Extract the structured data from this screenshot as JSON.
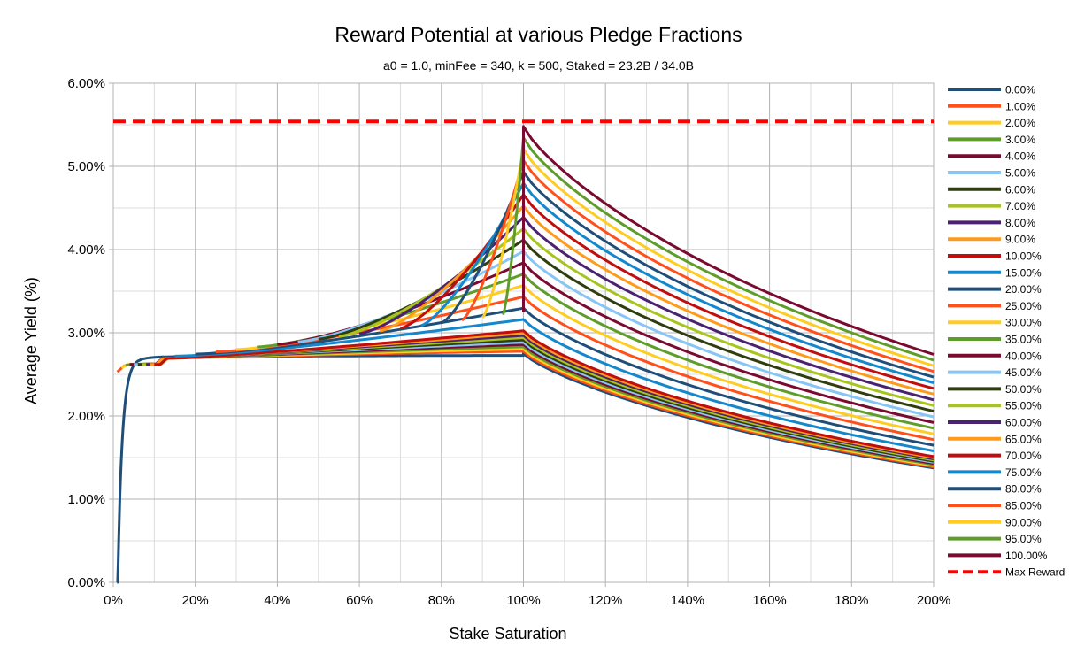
{
  "chart_data": {
    "type": "line",
    "title": "Reward Potential at various Pledge Fractions",
    "subtitle": "a0 = 1.0, minFee = 340, k = 500, Staked = 23.2B / 34.0B",
    "xlabel": "Stake Saturation",
    "ylabel": "Average Yield (%)",
    "xlim": [
      0,
      200
    ],
    "ylim": [
      0,
      6
    ],
    "xticks": [
      0,
      20,
      40,
      60,
      80,
      100,
      120,
      140,
      160,
      180,
      200
    ],
    "xtick_labels": [
      "0%",
      "20%",
      "40%",
      "60%",
      "80%",
      "100%",
      "120%",
      "140%",
      "160%",
      "180%",
      "200%"
    ],
    "yticks": [
      0,
      1,
      2,
      3,
      4,
      5,
      6
    ],
    "ytick_labels": [
      "0.00%",
      "1.00%",
      "2.00%",
      "3.00%",
      "4.00%",
      "5.00%",
      "6.00%"
    ],
    "grid": true,
    "legend_position": "right",
    "curve_model": {
      "description": "yield at saturation x for pledge fraction p: start x = 100*p, peak at x = 100, decaying beyond",
      "base_peak": 2.75,
      "peak_slope": 2.73,
      "yield_at_200_base": 1.375,
      "ramp_floor": 2.73,
      "ramp_knee": 1.3
    },
    "series": [
      {
        "name": "0.00%",
        "pledge": 0.0,
        "color": "#1f4e79"
      },
      {
        "name": "1.00%",
        "pledge": 0.01,
        "color": "#ff4f1a"
      },
      {
        "name": "2.00%",
        "pledge": 0.02,
        "color": "#ffcc22"
      },
      {
        "name": "3.00%",
        "pledge": 0.03,
        "color": "#5f9d2b"
      },
      {
        "name": "4.00%",
        "pledge": 0.04,
        "color": "#7b0a30"
      },
      {
        "name": "5.00%",
        "pledge": 0.05,
        "color": "#86c5f5"
      },
      {
        "name": "6.00%",
        "pledge": 0.06,
        "color": "#2f3d0f"
      },
      {
        "name": "7.00%",
        "pledge": 0.07,
        "color": "#a7c41f"
      },
      {
        "name": "8.00%",
        "pledge": 0.08,
        "color": "#4b2270"
      },
      {
        "name": "9.00%",
        "pledge": 0.09,
        "color": "#ff9a1a"
      },
      {
        "name": "10.00%",
        "pledge": 0.1,
        "color": "#c00d0d"
      },
      {
        "name": "15.00%",
        "pledge": 0.15,
        "color": "#1488cc"
      },
      {
        "name": "20.00%",
        "pledge": 0.2,
        "color": "#1f4e79"
      },
      {
        "name": "25.00%",
        "pledge": 0.25,
        "color": "#ff4f1a"
      },
      {
        "name": "30.00%",
        "pledge": 0.3,
        "color": "#ffcc22"
      },
      {
        "name": "35.00%",
        "pledge": 0.35,
        "color": "#5f9d2b"
      },
      {
        "name": "40.00%",
        "pledge": 0.4,
        "color": "#7b0a30"
      },
      {
        "name": "45.00%",
        "pledge": 0.45,
        "color": "#86c5f5"
      },
      {
        "name": "50.00%",
        "pledge": 0.5,
        "color": "#2f3d0f"
      },
      {
        "name": "55.00%",
        "pledge": 0.55,
        "color": "#a7c41f"
      },
      {
        "name": "60.00%",
        "pledge": 0.6,
        "color": "#4b2270"
      },
      {
        "name": "65.00%",
        "pledge": 0.65,
        "color": "#ff9a1a"
      },
      {
        "name": "70.00%",
        "pledge": 0.7,
        "color": "#c00d0d"
      },
      {
        "name": "75.00%",
        "pledge": 0.75,
        "color": "#1488cc"
      },
      {
        "name": "80.00%",
        "pledge": 0.8,
        "color": "#1f4e79"
      },
      {
        "name": "85.00%",
        "pledge": 0.85,
        "color": "#ff4f1a"
      },
      {
        "name": "90.00%",
        "pledge": 0.9,
        "color": "#ffcc22"
      },
      {
        "name": "95.00%",
        "pledge": 0.95,
        "color": "#5f9d2b"
      },
      {
        "name": "100.00%",
        "pledge": 1.0,
        "color": "#7b0a30"
      }
    ],
    "max_reward": {
      "name": "Max Reward",
      "value": 5.54,
      "color": "#ff0000"
    }
  }
}
